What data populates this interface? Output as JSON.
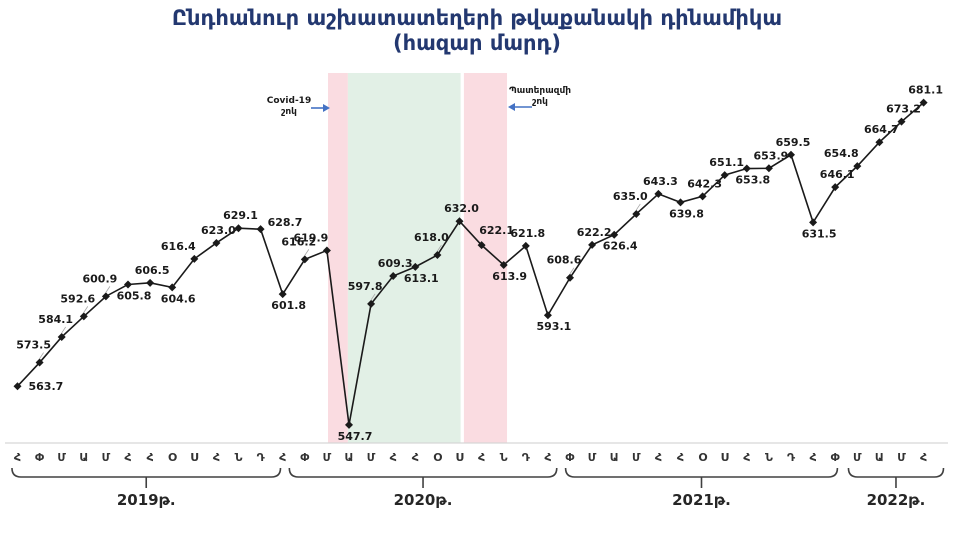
{
  "title": {
    "line1": "Ընդհանուր աշխատատեղերի թվաքանակի դինամիկա",
    "line2": "(հազար մարդ)"
  },
  "annotations": {
    "covid": {
      "line1": "Covid-19",
      "line2": "շոկ"
    },
    "war": {
      "line1": "Պատերազմի",
      "line2": "շոկ"
    }
  },
  "colors": {
    "title": "#233870",
    "line": "#1a1a1a",
    "label": "#1a1a1a",
    "highlight_last_label": "#FF3300",
    "arrow": "#4472C4",
    "band_pink": "#FADCE1",
    "band_green": "#E2F0E6",
    "axis_line": "#D6D6D6",
    "bracket": "#404040"
  },
  "chart_data": {
    "type": "line",
    "title": "Ընդհանուր աշխատատեղերի թվաքանակի դինամիկա (հազար մարդ)",
    "x": [
      "Հ",
      "Փ",
      "Մ",
      "Ա",
      "Մ",
      "Հ",
      "Հ",
      "Օ",
      "Ս",
      "Հ",
      "Ն",
      "Դ",
      "Հ",
      "Փ",
      "Մ",
      "Ա",
      "Մ",
      "Հ",
      "Հ",
      "Օ",
      "Ս",
      "Հ",
      "Ն",
      "Դ",
      "Հ",
      "Փ",
      "Մ",
      "Ա",
      "Մ",
      "Հ",
      "Հ",
      "Օ",
      "Ս",
      "Հ",
      "Ն",
      "Դ",
      "Հ",
      "Փ",
      "Մ",
      "Ա",
      "Մ",
      "Հ"
    ],
    "values": [
      563.7,
      573.5,
      584.1,
      592.6,
      600.9,
      605.8,
      606.5,
      604.6,
      616.4,
      623.0,
      629.1,
      628.7,
      601.8,
      616.2,
      619.9,
      547.7,
      597.8,
      609.3,
      613.1,
      618.0,
      632.0,
      622.1,
      613.9,
      621.8,
      593.1,
      608.6,
      622.2,
      626.4,
      635.0,
      643.3,
      639.8,
      642.3,
      651.1,
      653.8,
      653.9,
      659.5,
      631.5,
      646.1,
      654.8,
      664.7,
      673.2,
      681.1
    ],
    "label_pos": [
      "r",
      "A",
      "A",
      "A",
      "A",
      "b",
      "a",
      "b",
      "al",
      "a",
      "a",
      "ar",
      "b",
      "A",
      "al",
      "b",
      "A",
      "a",
      "b",
      "A",
      "a",
      "aR",
      "b",
      "a",
      "b",
      "A",
      "a",
      "b",
      "A",
      "a",
      "b",
      "a",
      "a",
      "b",
      "a",
      "a",
      "b",
      "a",
      "al",
      "a",
      "a",
      "a"
    ],
    "years": [
      {
        "label": "2019թ.",
        "from": 0,
        "to": 11
      },
      {
        "label": "2020թ.",
        "from": 12,
        "to": 23
      },
      {
        "label": "2021թ.",
        "from": 24,
        "to": 35
      },
      {
        "label": "2022թ.",
        "from": 36,
        "to": 41
      }
    ],
    "bands": [
      {
        "name": "covid-shock-band",
        "color": "#FADCE1",
        "from": 14.05,
        "to": 14.95
      },
      {
        "name": "recovery-band",
        "color": "#E2F0E6",
        "from": 14.95,
        "to": 20.05
      },
      {
        "name": "war-shock-band",
        "color": "#FADCE1",
        "from": 20.2,
        "to": 22.15
      }
    ],
    "ylim": [
      540,
      690
    ],
    "grid": false,
    "legend": false,
    "xlabel": "",
    "ylabel": ""
  }
}
